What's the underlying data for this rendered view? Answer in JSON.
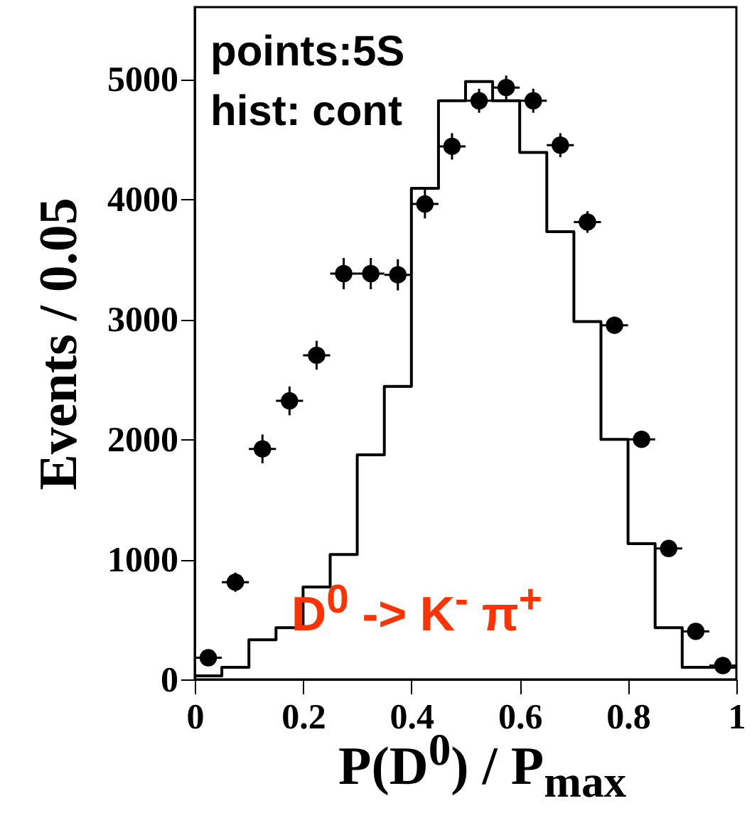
{
  "chart_data": {
    "type": "histogram",
    "ylabel": "Events / 0.05",
    "xlabel": "P(D$^{0}$) / P$_{max}$",
    "annotations": [
      "points:5S",
      "hist: cont",
      "D$^{0}$ -> K$^{-}$ π$^{+}$"
    ],
    "bins": [
      0,
      0.05,
      0.1,
      0.15,
      0.2,
      0.25,
      0.3,
      0.35,
      0.4,
      0.45,
      0.5,
      0.55,
      0.6,
      0.65,
      0.7,
      0.75,
      0.8,
      0.85,
      0.9,
      0.95,
      1
    ],
    "series": [
      {
        "color": "#000000",
        "values": [
          30,
          100,
          330,
          430,
          770,
          1040,
          1870,
          2440,
          4090,
          4820,
          4980,
          4820,
          4390,
          3730,
          2980,
          2000,
          1130,
          430,
          100,
          100
        ]
      },
      {
        "type": "scatter",
        "color": "#000000",
        "x": [
          0.025,
          0.075,
          0.125,
          0.175,
          0.225,
          0.275,
          0.325,
          0.375,
          0.425,
          0.475,
          0.525,
          0.575,
          0.625,
          0.675,
          0.725,
          0.775,
          0.825,
          0.875,
          0.925,
          0.975
        ],
        "values": [
          180,
          810,
          1920,
          2320,
          2700,
          3380,
          3380,
          3370,
          3960,
          4440,
          4820,
          4930,
          4820,
          4450,
          3810,
          2950,
          2000,
          1090,
          400,
          115
        ],
        "errors": [
          40,
          80,
          120,
          120,
          120,
          130,
          130,
          130,
          120,
          110,
          100,
          100,
          100,
          100,
          90,
          70,
          60,
          50,
          30,
          20
        ],
        "xerrors": [
          0.025,
          0.025,
          0.025,
          0.025,
          0.025,
          0.025,
          0.025,
          0.025,
          0.025,
          0.025,
          0.025,
          0.025,
          0.025,
          0.025,
          0.025,
          0.025,
          0.025,
          0.025,
          0.025,
          0.025
        ]
      }
    ],
    "marker": "circle",
    "grid": false,
    "xlim": [
      0,
      1
    ],
    "xticks": [
      0,
      0.2,
      0.4,
      0.6,
      0.8,
      1
    ],
    "ylim": [
      0,
      5600
    ],
    "yticks": [
      0,
      1000,
      2000,
      3000,
      4000,
      5000
    ]
  }
}
